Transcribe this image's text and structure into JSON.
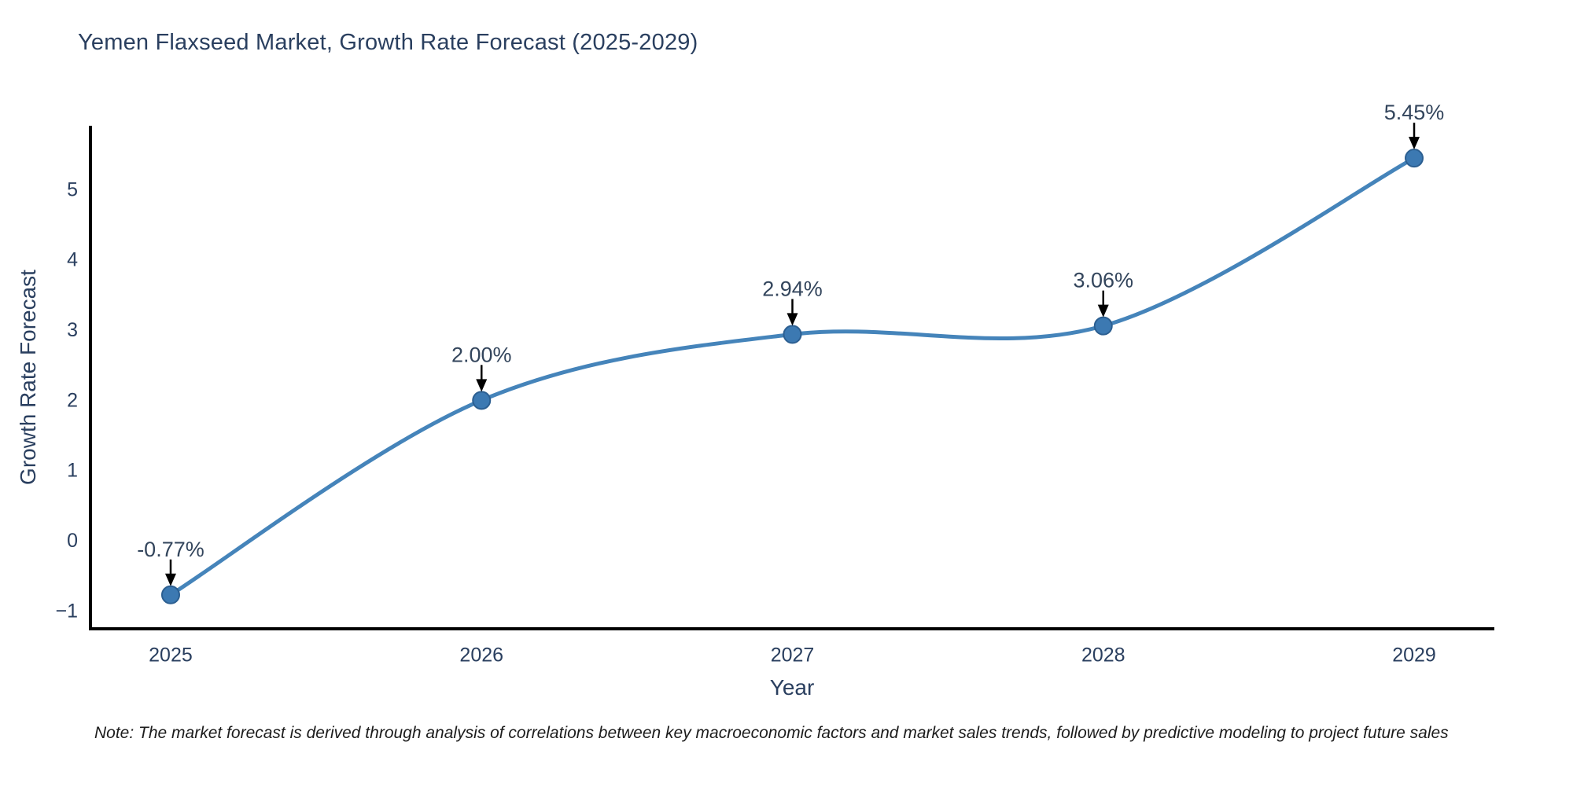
{
  "header": {
    "title": "Yemen Flaxseed Market, Growth Rate Forecast (2025-2029)"
  },
  "chart_data": {
    "type": "line",
    "title": "Yemen Flaxseed Market, Growth Rate Forecast (2025-2029)",
    "xlabel": "Year",
    "ylabel": "Growth Rate Forecast",
    "x": [
      2025,
      2026,
      2027,
      2028,
      2029
    ],
    "series": [
      {
        "name": "Growth Rate Forecast",
        "values": [
          -0.77,
          2.0,
          2.94,
          3.06,
          5.45
        ]
      }
    ],
    "point_labels": [
      "-0.77%",
      "2.00%",
      "2.94%",
      "3.06%",
      "5.45%"
    ],
    "x_ticks": [
      "2025",
      "2026",
      "2027",
      "2028",
      "2029"
    ],
    "y_ticks": [
      -1,
      0,
      1,
      2,
      3,
      4,
      5
    ],
    "xlim": [
      2024.742,
      2029.258
    ],
    "ylim": [
      -1.254,
      5.911
    ],
    "grid": false,
    "legend": "none",
    "line_shape": "spline",
    "annotation_arrows": true,
    "colors": {
      "line": "#4584ba",
      "marker_fill": "#3c79b2",
      "marker_edge": "#2c5f91",
      "axis_line": "#000000",
      "arrow": "#000000",
      "tick_text": "#2a3f5f",
      "annotation_text": "#33455c",
      "title_text": "#2a3f5f"
    }
  },
  "footnote": {
    "text": "Note: The market forecast is derived through analysis of correlations between key macroeconomic factors and market sales trends, followed by predictive modeling to project future sales"
  }
}
